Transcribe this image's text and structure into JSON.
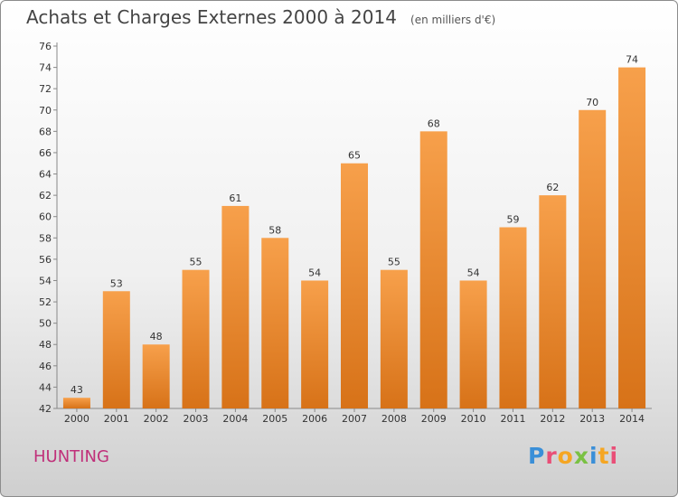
{
  "header": {
    "title": "Achats et Charges Externes 2000 à 2014",
    "unit": "(en milliers d'€)"
  },
  "footer": {
    "commune": "HUNTING",
    "logo_text": "Proxiti",
    "logo_colors": [
      "#3a8fd8",
      "#e94e77",
      "#f5a623",
      "#7ac143",
      "#3a8fd8",
      "#f5a623",
      "#e94e77"
    ]
  },
  "chart_data": {
    "type": "bar",
    "title": "Achats et Charges Externes 2000 à 2014",
    "categories": [
      "2000",
      "2001",
      "2002",
      "2003",
      "2004",
      "2005",
      "2006",
      "2007",
      "2008",
      "2009",
      "2010",
      "2011",
      "2012",
      "2013",
      "2014"
    ],
    "values": [
      43,
      53,
      48,
      55,
      61,
      58,
      54,
      65,
      55,
      68,
      54,
      59,
      62,
      70,
      74
    ],
    "ylim": [
      42,
      76
    ],
    "yticks": [
      42,
      44,
      46,
      48,
      50,
      52,
      54,
      56,
      58,
      60,
      62,
      64,
      66,
      68,
      70,
      72,
      74,
      76
    ],
    "grid": false,
    "bar_color_top": "#f7a04b",
    "bar_color_bottom": "#d77218"
  }
}
